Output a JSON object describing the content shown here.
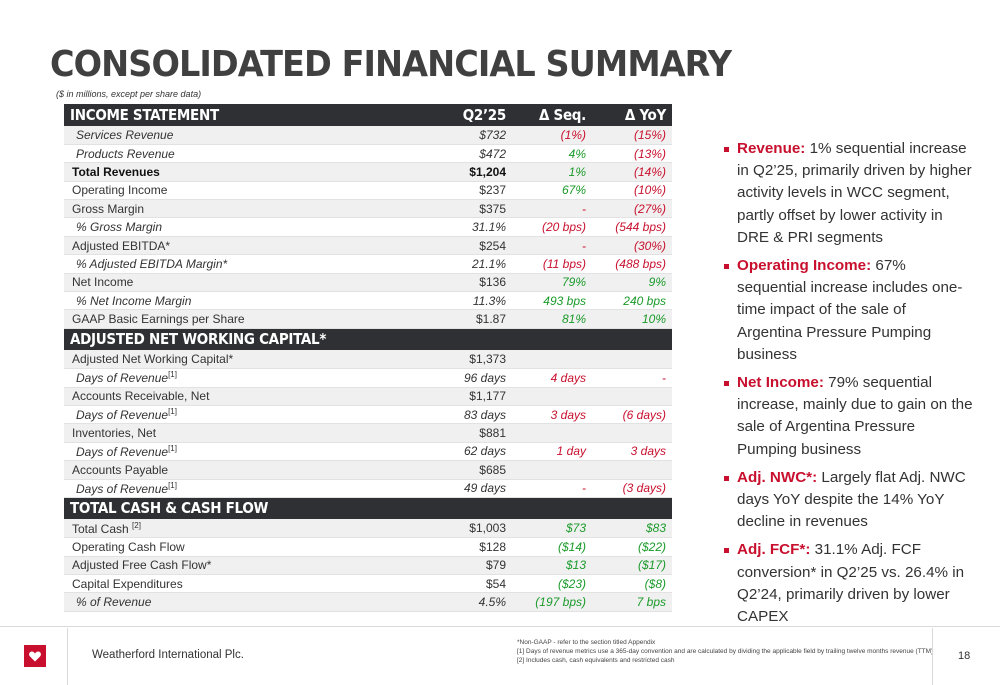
{
  "header": {
    "title": "CONSOLIDATED FINANCIAL SUMMARY",
    "subtitle": "($ in millions, except per share data)"
  },
  "table": {
    "columns": [
      "Q2’25",
      "Δ Seq.",
      "Δ YoY"
    ],
    "sections": [
      {
        "title": "INCOME STATEMENT",
        "show_columns": true,
        "rows": [
          {
            "label": "Services Revenue",
            "q": "$732",
            "seq": "(1%)",
            "yoy": "(15%)",
            "style": "italic",
            "seq_color": "neg",
            "yoy_color": "neg"
          },
          {
            "label": "Products Revenue",
            "q": "$472",
            "seq": "4%",
            "yoy": "(13%)",
            "style": "italic",
            "seq_color": "pos",
            "yoy_color": "neg"
          },
          {
            "label": "Total Revenues",
            "q": "$1,204",
            "seq": "1%",
            "yoy": "(14%)",
            "style": "bold",
            "seq_color": "pos",
            "yoy_color": "neg"
          },
          {
            "label": "Operating Income",
            "q": "$237",
            "seq": "67%",
            "yoy": "(10%)",
            "style": "normal",
            "seq_color": "pos",
            "yoy_color": "neg"
          },
          {
            "label": "Gross Margin",
            "q": "$375",
            "seq": "-",
            "yoy": "(27%)",
            "style": "normal",
            "seq_color": "neg",
            "yoy_color": "neg"
          },
          {
            "label": "% Gross Margin",
            "q": "31.1%",
            "seq": "(20 bps)",
            "yoy": "(544 bps)",
            "style": "italic",
            "seq_color": "neg",
            "yoy_color": "neg"
          },
          {
            "label": "Adjusted EBITDA*",
            "q": "$254",
            "seq": "-",
            "yoy": "(30%)",
            "style": "normal",
            "seq_color": "neg",
            "yoy_color": "neg"
          },
          {
            "label": "% Adjusted EBITDA Margin*",
            "q": "21.1%",
            "seq": "(11 bps)",
            "yoy": "(488 bps)",
            "style": "italic",
            "seq_color": "neg",
            "yoy_color": "neg"
          },
          {
            "label": "Net Income",
            "q": "$136",
            "seq": "79%",
            "yoy": "9%",
            "style": "normal",
            "seq_color": "pos",
            "yoy_color": "pos"
          },
          {
            "label": "% Net Income Margin",
            "q": "11.3%",
            "seq": "493 bps",
            "yoy": "240 bps",
            "style": "italic",
            "seq_color": "pos",
            "yoy_color": "pos"
          },
          {
            "label": "GAAP Basic Earnings per Share",
            "q": "$1.87",
            "seq": "81%",
            "yoy": "10%",
            "style": "normal",
            "seq_color": "pos",
            "yoy_color": "pos"
          }
        ]
      },
      {
        "title": "ADJUSTED NET WORKING CAPITAL*",
        "show_columns": false,
        "rows": [
          {
            "label": "Adjusted Net Working Capital*",
            "q": "$1,373",
            "seq": "",
            "yoy": "",
            "style": "normal",
            "seq_color": "neg",
            "yoy_color": "neg"
          },
          {
            "label": "Days of Revenue",
            "sup": "[1]",
            "q": "96 days",
            "seq": "4 days",
            "yoy": "-",
            "style": "italic",
            "seq_color": "neg",
            "yoy_color": "neg"
          },
          {
            "label": "Accounts Receivable, Net",
            "q": "$1,177",
            "seq": "",
            "yoy": "",
            "style": "normal",
            "seq_color": "neg",
            "yoy_color": "neg"
          },
          {
            "label": "Days of Revenue",
            "sup": "[1]",
            "q": "83 days",
            "seq": "3 days",
            "yoy": "(6 days)",
            "style": "italic",
            "seq_color": "neg",
            "yoy_color": "neg"
          },
          {
            "label": "Inventories, Net",
            "q": "$881",
            "seq": "",
            "yoy": "",
            "style": "normal",
            "seq_color": "neg",
            "yoy_color": "neg"
          },
          {
            "label": "Days of Revenue",
            "sup": "[1]",
            "q": "62 days",
            "seq": "1 day",
            "yoy": "3 days",
            "style": "italic",
            "seq_color": "neg",
            "yoy_color": "neg"
          },
          {
            "label": "Accounts Payable",
            "q": "$685",
            "seq": "",
            "yoy": "",
            "style": "normal",
            "seq_color": "neg",
            "yoy_color": "neg"
          },
          {
            "label": "Days of Revenue",
            "sup": "[1]",
            "q": "49 days",
            "seq": "-",
            "yoy": "(3 days)",
            "style": "italic",
            "seq_color": "neg",
            "yoy_color": "neg"
          }
        ]
      },
      {
        "title": "TOTAL CASH & CASH FLOW",
        "show_columns": false,
        "rows": [
          {
            "label": "Total Cash ",
            "sup": "[2]",
            "q": "$1,003",
            "seq": "$73",
            "yoy": "$83",
            "style": "normal",
            "seq_color": "pos",
            "yoy_color": "pos"
          },
          {
            "label": "Operating Cash Flow",
            "q": "$128",
            "seq": "($14)",
            "yoy": "($22)",
            "style": "normal",
            "seq_color": "pos",
            "yoy_color": "pos"
          },
          {
            "label": "Adjusted Free Cash Flow*",
            "q": "$79",
            "seq": "$13",
            "yoy": "($17)",
            "style": "normal",
            "seq_color": "pos",
            "yoy_color": "pos"
          },
          {
            "label": "Capital Expenditures",
            "q": "$54",
            "seq": "($23)",
            "yoy": "($8)",
            "style": "normal",
            "seq_color": "pos",
            "yoy_color": "pos"
          },
          {
            "label": "% of Revenue",
            "q": "4.5%",
            "seq": "(197 bps)",
            "yoy": "7 bps",
            "style": "italic",
            "seq_color": "pos",
            "yoy_color": "pos"
          }
        ]
      }
    ]
  },
  "bullets": [
    {
      "lead": "Revenue:",
      "text": " 1% sequential increase in Q2’25, primarily driven by higher activity levels in WCC segment, partly offset by lower activity in DRE & PRI segments"
    },
    {
      "lead": "Operating Income:",
      "text": " 67% sequential increase includes one-time impact of the sale of Argentina Pressure Pumping business"
    },
    {
      "lead": "Net Income:",
      "text": " 79% sequential increase, mainly due to gain on the sale of Argentina Pressure Pumping business"
    },
    {
      "lead": "Adj. NWC*:",
      "text": " Largely flat Adj. NWC days YoY despite the 14% YoY decline in revenues"
    },
    {
      "lead": "Adj. FCF*:",
      "text": " 31.1% Adj. FCF conversion* in Q2’25 vs. 26.4% in Q2’24, primarily driven by lower CAPEX"
    }
  ],
  "footer": {
    "company": "Weatherford International Plc.",
    "footnotes": [
      "*Non-GAAP - refer to the section titled Appendix",
      "[1] Days of revenue metrics use a 365-day convention and are calculated by dividing the applicable field by trailing twelve months revenue (TTM)",
      "[2] Includes cash, cash equivalents and restricted cash"
    ],
    "page_number": "18"
  },
  "colors": {
    "brand_red": "#c8102e",
    "positive_green": "#1a9a2a",
    "header_dark": "#2e3034"
  },
  "icons": {
    "logo": "heart-logo-icon",
    "bullet": "square-bullet-icon"
  }
}
